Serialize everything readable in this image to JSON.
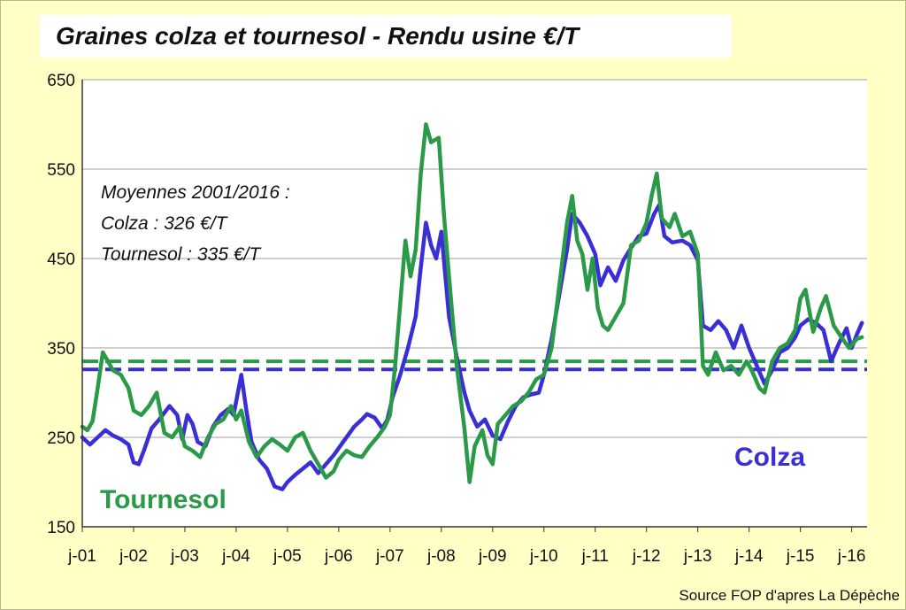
{
  "chart_data": {
    "type": "line",
    "title": "Graines colza et  tournesol - Rendu usine €/T",
    "ylim": [
      150,
      650
    ],
    "yticks": [
      150,
      250,
      350,
      450,
      550,
      650
    ],
    "xlim": [
      2001.0,
      2016.3
    ],
    "xticks": [
      {
        "x": 2001,
        "label": "j-01"
      },
      {
        "x": 2002,
        "label": "j-02"
      },
      {
        "x": 2003,
        "label": "j-03"
      },
      {
        "x": 2004,
        "label": "j-04"
      },
      {
        "x": 2005,
        "label": "j-05"
      },
      {
        "x": 2006,
        "label": "j-06"
      },
      {
        "x": 2007,
        "label": "j-07"
      },
      {
        "x": 2008,
        "label": "j-08"
      },
      {
        "x": 2009,
        "label": "j-09"
      },
      {
        "x": 2010,
        "label": "j-10"
      },
      {
        "x": 2011,
        "label": "j-11"
      },
      {
        "x": 2012,
        "label": "j-12"
      },
      {
        "x": 2013,
        "label": "j-13"
      },
      {
        "x": 2014,
        "label": "j-14"
      },
      {
        "x": 2015,
        "label": "j-15"
      },
      {
        "x": 2016,
        "label": "j-16"
      }
    ],
    "grid": true,
    "annotation_lines": [
      "Moyennes 2001/2016 :",
      "Colza : 326 €/T",
      "Tournesol : 335 €/T"
    ],
    "series": [
      {
        "name": "Colza",
        "color": "#3a2fd6",
        "average": 326,
        "points": [
          [
            2001.0,
            250
          ],
          [
            2001.15,
            242
          ],
          [
            2001.3,
            250
          ],
          [
            2001.45,
            258
          ],
          [
            2001.6,
            252
          ],
          [
            2001.75,
            248
          ],
          [
            2001.9,
            242
          ],
          [
            2002.0,
            222
          ],
          [
            2002.1,
            220
          ],
          [
            2002.2,
            235
          ],
          [
            2002.35,
            260
          ],
          [
            2002.5,
            270
          ],
          [
            2002.7,
            285
          ],
          [
            2002.85,
            275
          ],
          [
            2002.95,
            248
          ],
          [
            2003.05,
            275
          ],
          [
            2003.15,
            265
          ],
          [
            2003.25,
            245
          ],
          [
            2003.4,
            240
          ],
          [
            2003.55,
            262
          ],
          [
            2003.7,
            275
          ],
          [
            2003.85,
            282
          ],
          [
            2003.95,
            275
          ],
          [
            2004.1,
            320
          ],
          [
            2004.2,
            280
          ],
          [
            2004.3,
            245
          ],
          [
            2004.45,
            225
          ],
          [
            2004.6,
            215
          ],
          [
            2004.75,
            195
          ],
          [
            2004.9,
            192
          ],
          [
            2005.0,
            200
          ],
          [
            2005.15,
            208
          ],
          [
            2005.3,
            215
          ],
          [
            2005.45,
            222
          ],
          [
            2005.6,
            210
          ],
          [
            2005.75,
            220
          ],
          [
            2005.9,
            230
          ],
          [
            2006.0,
            238
          ],
          [
            2006.15,
            250
          ],
          [
            2006.3,
            262
          ],
          [
            2006.45,
            270
          ],
          [
            2006.55,
            276
          ],
          [
            2006.7,
            272
          ],
          [
            2006.85,
            260
          ],
          [
            2006.95,
            270
          ],
          [
            2007.05,
            295
          ],
          [
            2007.2,
            320
          ],
          [
            2007.35,
            350
          ],
          [
            2007.5,
            385
          ],
          [
            2007.6,
            440
          ],
          [
            2007.7,
            490
          ],
          [
            2007.8,
            465
          ],
          [
            2007.9,
            450
          ],
          [
            2008.0,
            480
          ],
          [
            2008.15,
            385
          ],
          [
            2008.3,
            340
          ],
          [
            2008.45,
            300
          ],
          [
            2008.55,
            280
          ],
          [
            2008.7,
            262
          ],
          [
            2008.85,
            270
          ],
          [
            2009.0,
            252
          ],
          [
            2009.15,
            248
          ],
          [
            2009.3,
            268
          ],
          [
            2009.45,
            285
          ],
          [
            2009.6,
            295
          ],
          [
            2009.75,
            298
          ],
          [
            2009.9,
            300
          ],
          [
            2010.0,
            320
          ],
          [
            2010.15,
            360
          ],
          [
            2010.3,
            410
          ],
          [
            2010.45,
            460
          ],
          [
            2010.55,
            500
          ],
          [
            2010.7,
            490
          ],
          [
            2010.85,
            475
          ],
          [
            2011.0,
            455
          ],
          [
            2011.1,
            420
          ],
          [
            2011.25,
            440
          ],
          [
            2011.4,
            425
          ],
          [
            2011.55,
            448
          ],
          [
            2011.7,
            462
          ],
          [
            2011.85,
            475
          ],
          [
            2012.0,
            478
          ],
          [
            2012.15,
            500
          ],
          [
            2012.25,
            510
          ],
          [
            2012.35,
            475
          ],
          [
            2012.5,
            468
          ],
          [
            2012.7,
            470
          ],
          [
            2012.85,
            465
          ],
          [
            2013.0,
            448
          ],
          [
            2013.1,
            375
          ],
          [
            2013.25,
            370
          ],
          [
            2013.4,
            380
          ],
          [
            2013.55,
            370
          ],
          [
            2013.7,
            350
          ],
          [
            2013.85,
            375
          ],
          [
            2014.0,
            350
          ],
          [
            2014.15,
            330
          ],
          [
            2014.3,
            310
          ],
          [
            2014.45,
            325
          ],
          [
            2014.6,
            345
          ],
          [
            2014.75,
            350
          ],
          [
            2014.9,
            362
          ],
          [
            2015.0,
            375
          ],
          [
            2015.15,
            382
          ],
          [
            2015.3,
            378
          ],
          [
            2015.45,
            370
          ],
          [
            2015.6,
            335
          ],
          [
            2015.75,
            355
          ],
          [
            2015.9,
            372
          ],
          [
            2016.0,
            350
          ],
          [
            2016.1,
            365
          ],
          [
            2016.2,
            378
          ]
        ]
      },
      {
        "name": "Tournesol",
        "color": "#2a9a48",
        "average": 335,
        "points": [
          [
            2001.0,
            262
          ],
          [
            2001.1,
            258
          ],
          [
            2001.2,
            268
          ],
          [
            2001.3,
            305
          ],
          [
            2001.4,
            345
          ],
          [
            2001.5,
            335
          ],
          [
            2001.6,
            325
          ],
          [
            2001.75,
            320
          ],
          [
            2001.9,
            305
          ],
          [
            2002.0,
            280
          ],
          [
            2002.15,
            275
          ],
          [
            2002.3,
            285
          ],
          [
            2002.45,
            300
          ],
          [
            2002.6,
            255
          ],
          [
            2002.75,
            250
          ],
          [
            2002.9,
            262
          ],
          [
            2003.0,
            240
          ],
          [
            2003.15,
            235
          ],
          [
            2003.3,
            228
          ],
          [
            2003.45,
            250
          ],
          [
            2003.6,
            265
          ],
          [
            2003.75,
            270
          ],
          [
            2003.9,
            285
          ],
          [
            2004.0,
            270
          ],
          [
            2004.1,
            280
          ],
          [
            2004.25,
            245
          ],
          [
            2004.4,
            228
          ],
          [
            2004.55,
            240
          ],
          [
            2004.7,
            248
          ],
          [
            2004.85,
            242
          ],
          [
            2005.0,
            235
          ],
          [
            2005.15,
            250
          ],
          [
            2005.3,
            255
          ],
          [
            2005.45,
            235
          ],
          [
            2005.6,
            220
          ],
          [
            2005.75,
            205
          ],
          [
            2005.9,
            212
          ],
          [
            2006.0,
            225
          ],
          [
            2006.15,
            235
          ],
          [
            2006.3,
            230
          ],
          [
            2006.45,
            228
          ],
          [
            2006.6,
            240
          ],
          [
            2006.75,
            250
          ],
          [
            2006.9,
            262
          ],
          [
            2007.0,
            275
          ],
          [
            2007.1,
            330
          ],
          [
            2007.2,
            400
          ],
          [
            2007.3,
            470
          ],
          [
            2007.4,
            430
          ],
          [
            2007.5,
            460
          ],
          [
            2007.6,
            545
          ],
          [
            2007.7,
            600
          ],
          [
            2007.8,
            580
          ],
          [
            2007.95,
            585
          ],
          [
            2008.05,
            500
          ],
          [
            2008.15,
            430
          ],
          [
            2008.3,
            330
          ],
          [
            2008.45,
            260
          ],
          [
            2008.55,
            200
          ],
          [
            2008.65,
            240
          ],
          [
            2008.8,
            258
          ],
          [
            2008.9,
            230
          ],
          [
            2009.0,
            220
          ],
          [
            2009.1,
            265
          ],
          [
            2009.25,
            275
          ],
          [
            2009.4,
            285
          ],
          [
            2009.55,
            290
          ],
          [
            2009.7,
            300
          ],
          [
            2009.85,
            315
          ],
          [
            2010.0,
            320
          ],
          [
            2010.15,
            350
          ],
          [
            2010.3,
            420
          ],
          [
            2010.45,
            490
          ],
          [
            2010.55,
            520
          ],
          [
            2010.65,
            470
          ],
          [
            2010.75,
            455
          ],
          [
            2010.85,
            415
          ],
          [
            2010.95,
            450
          ],
          [
            2011.05,
            395
          ],
          [
            2011.15,
            375
          ],
          [
            2011.25,
            370
          ],
          [
            2011.4,
            385
          ],
          [
            2011.55,
            400
          ],
          [
            2011.7,
            465
          ],
          [
            2011.85,
            470
          ],
          [
            2012.0,
            490
          ],
          [
            2012.1,
            520
          ],
          [
            2012.2,
            545
          ],
          [
            2012.3,
            495
          ],
          [
            2012.45,
            485
          ],
          [
            2012.55,
            500
          ],
          [
            2012.7,
            475
          ],
          [
            2012.85,
            480
          ],
          [
            2013.0,
            455
          ],
          [
            2013.1,
            330
          ],
          [
            2013.2,
            320
          ],
          [
            2013.35,
            345
          ],
          [
            2013.5,
            325
          ],
          [
            2013.65,
            330
          ],
          [
            2013.8,
            320
          ],
          [
            2013.95,
            335
          ],
          [
            2014.05,
            325
          ],
          [
            2014.2,
            305
          ],
          [
            2014.3,
            300
          ],
          [
            2014.45,
            335
          ],
          [
            2014.6,
            350
          ],
          [
            2014.75,
            355
          ],
          [
            2014.9,
            370
          ],
          [
            2015.0,
            405
          ],
          [
            2015.1,
            415
          ],
          [
            2015.25,
            368
          ],
          [
            2015.4,
            395
          ],
          [
            2015.5,
            408
          ],
          [
            2015.65,
            375
          ],
          [
            2015.8,
            362
          ],
          [
            2015.95,
            350
          ],
          [
            2016.1,
            360
          ],
          [
            2016.2,
            362
          ]
        ]
      }
    ],
    "series_labels": [
      {
        "name": "Colza",
        "color": "#3a2fd6"
      },
      {
        "name": "Tournesol",
        "color": "#2a9a48"
      }
    ]
  },
  "source_text": "Source FOP d'apres La Dépèche"
}
